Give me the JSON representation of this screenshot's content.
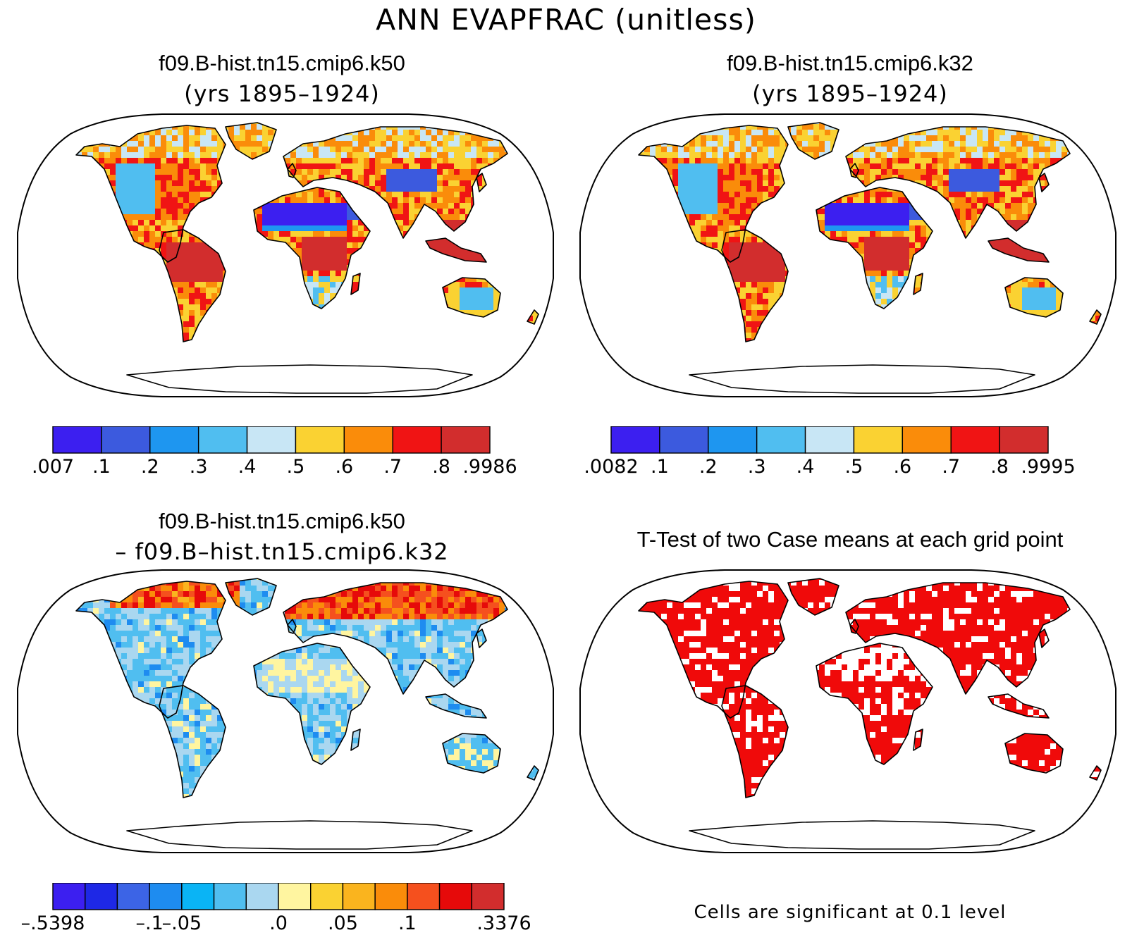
{
  "title": "ANN EVAPFRAC (unitless)",
  "panels": [
    {
      "id": "case1",
      "title": "f09.B-hist.tn15.cmip6.k50",
      "subtitle": "(yrs 1895–1924)"
    },
    {
      "id": "case2",
      "title": "f09.B-hist.tn15.cmip6.k32",
      "subtitle": "(yrs 1895–1924)"
    },
    {
      "id": "diff",
      "title": "f09.B-hist.tn15.cmip6.k50",
      "subtitle": "– f09.B–hist.tn15.cmip6.k32"
    },
    {
      "id": "ttest",
      "title": "T-Test of two Case means at each grid point",
      "subtitle": ""
    }
  ],
  "colorbars": {
    "case1": {
      "colors": [
        "#3c1ff0",
        "#3c5ade",
        "#1e96f0",
        "#50bef0",
        "#c8e6f5",
        "#fad232",
        "#fa8c0a",
        "#f01414",
        "#d22d2d"
      ],
      "labels": [
        ".007",
        ".1",
        ".2",
        ".3",
        ".4",
        ".5",
        ".6",
        ".7",
        ".8",
        ".9986"
      ]
    },
    "case2": {
      "colors": [
        "#3c1ff0",
        "#3c5ade",
        "#1e96f0",
        "#50bef0",
        "#c8e6f5",
        "#fad232",
        "#fa8c0a",
        "#f01414",
        "#d22d2d"
      ],
      "labels": [
        ".0082",
        ".1",
        ".2",
        ".3",
        ".4",
        ".5",
        ".6",
        ".7",
        ".8",
        ".9995"
      ]
    },
    "diff": {
      "colors": [
        "#3c1ff0",
        "#1e28e6",
        "#3c64e6",
        "#1e8cf0",
        "#0ab4f5",
        "#50bef0",
        "#aad7f0",
        "#fff5a0",
        "#fad232",
        "#fab41e",
        "#fa8c0a",
        "#f5501e",
        "#e60a0a",
        "#d22d2d"
      ],
      "labels": [
        "–.5398",
        "–.1",
        "–.05",
        ".0",
        ".05",
        ".1",
        ".3376"
      ],
      "label_edges": [
        0,
        3,
        4,
        7,
        9,
        11,
        14
      ]
    }
  },
  "significance_note": "Cells are significant at 0.1 level"
}
